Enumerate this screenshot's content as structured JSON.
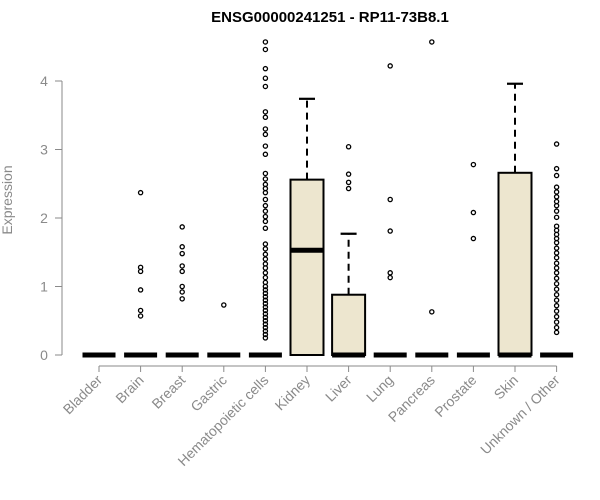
{
  "chart_data": {
    "type": "boxplot",
    "title": "ENSG00000241251 - RP11-73B8.1",
    "xlabel": "",
    "ylabel": "Expression",
    "ylim": [
      0,
      4.6
    ],
    "yticks": [
      0,
      1,
      2,
      3,
      4
    ],
    "categories": [
      "Bladder",
      "Brain",
      "Breast",
      "Gastric",
      "Hematopoietic cells",
      "Kidney",
      "Liver",
      "Lung",
      "Pancreas",
      "Prostate",
      "Skin",
      "Unknown / Other"
    ],
    "boxes": [
      {
        "q1": 0,
        "median": 0,
        "q3": 0,
        "whisker_low": 0,
        "whisker_high": 0,
        "outliers": []
      },
      {
        "q1": 0,
        "median": 0,
        "q3": 0,
        "whisker_low": 0,
        "whisker_high": 0,
        "outliers": [
          2.37,
          1.28,
          1.22,
          0.95,
          0.65,
          0.57
        ]
      },
      {
        "q1": 0,
        "median": 0,
        "q3": 0,
        "whisker_low": 0,
        "whisker_high": 0,
        "outliers": [
          1.87,
          1.58,
          1.48,
          1.3,
          1.22,
          1.0,
          0.92,
          0.82
        ]
      },
      {
        "q1": 0,
        "median": 0,
        "q3": 0,
        "whisker_low": 0,
        "whisker_high": 0,
        "outliers": [
          0.73
        ]
      },
      {
        "q1": 0,
        "median": 0,
        "q3": 0,
        "whisker_low": 0,
        "whisker_high": 0,
        "outliers": [
          4.57,
          4.46,
          4.18,
          4.04,
          3.92,
          3.55,
          3.47,
          3.3,
          3.22,
          3.05,
          2.93,
          2.65,
          2.57,
          2.49,
          2.43,
          2.37,
          2.27,
          2.18,
          2.1,
          2.02,
          1.95,
          1.85,
          1.62,
          1.55,
          1.47,
          1.4,
          1.33,
          1.27,
          1.2,
          1.13,
          1.06,
          1.0,
          0.95,
          0.9,
          0.85,
          0.8,
          0.75,
          0.7,
          0.65,
          0.6,
          0.55,
          0.5,
          0.45,
          0.4,
          0.35,
          0.3,
          0.25
        ]
      },
      {
        "q1": 0,
        "median": 1.53,
        "q3": 2.56,
        "whisker_low": 0,
        "whisker_high": 3.74,
        "outliers": []
      },
      {
        "q1": 0,
        "median": 0,
        "q3": 0.88,
        "whisker_low": 0,
        "whisker_high": 1.77,
        "outliers": [
          3.04,
          2.64,
          2.52,
          2.43
        ]
      },
      {
        "q1": 0,
        "median": 0,
        "q3": 0,
        "whisker_low": 0,
        "whisker_high": 0,
        "outliers": [
          4.22,
          2.27,
          1.81,
          1.2,
          1.13
        ]
      },
      {
        "q1": 0,
        "median": 0,
        "q3": 0,
        "whisker_low": 0,
        "whisker_high": 0,
        "outliers": [
          4.57,
          0.63
        ]
      },
      {
        "q1": 0,
        "median": 0,
        "q3": 0,
        "whisker_low": 0,
        "whisker_high": 0,
        "outliers": [
          2.78,
          2.08,
          1.7
        ]
      },
      {
        "q1": 0,
        "median": 0,
        "q3": 2.66,
        "whisker_low": 0,
        "whisker_high": 3.96,
        "outliers": []
      },
      {
        "q1": 0,
        "median": 0,
        "q3": 0,
        "whisker_low": 0,
        "whisker_high": 0,
        "outliers": [
          3.08,
          2.72,
          2.62,
          2.45,
          2.38,
          2.31,
          2.24,
          2.18,
          2.1,
          2.01,
          1.88,
          1.82,
          1.76,
          1.7,
          1.64,
          1.56,
          1.49,
          1.42,
          1.34,
          1.27,
          1.2,
          1.12,
          1.04,
          0.96,
          0.88,
          0.8,
          0.72,
          0.64,
          0.56,
          0.48,
          0.4,
          0.33
        ]
      }
    ],
    "colors": {
      "box_fill": "#ede6cf",
      "box_stroke": "#000000",
      "axis": "#8a8a8a",
      "text": "#8a8a8a",
      "title": "#000000"
    }
  }
}
